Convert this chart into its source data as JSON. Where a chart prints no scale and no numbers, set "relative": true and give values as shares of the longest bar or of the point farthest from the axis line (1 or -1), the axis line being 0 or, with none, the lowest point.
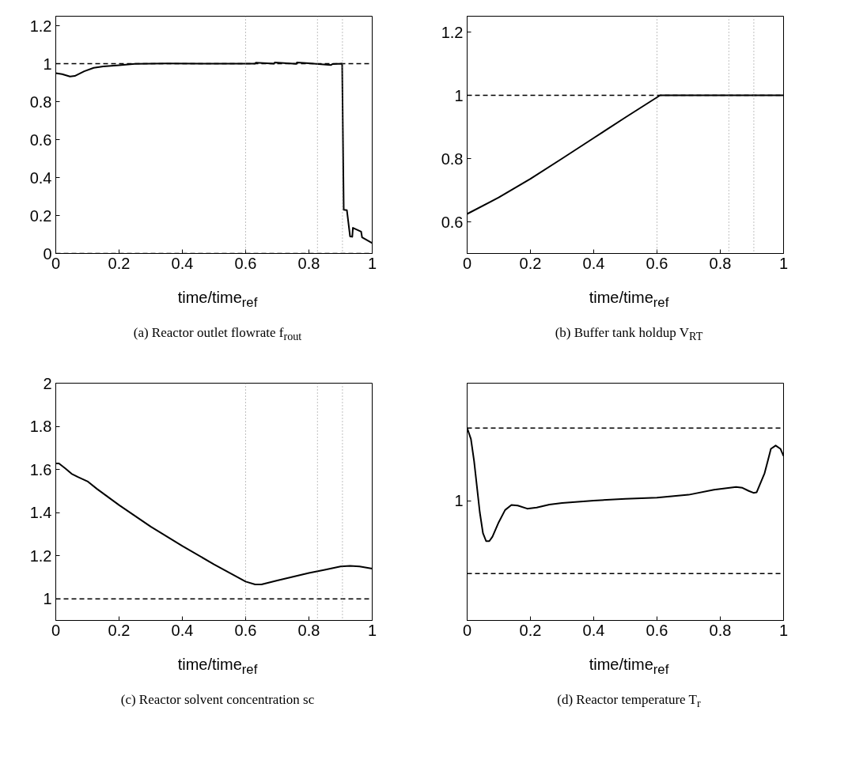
{
  "chart_data": [
    {
      "type": "line",
      "title": "(a) Reactor outlet flowrate f$_{rout}$",
      "xlabel": "time/time$_{ref}$",
      "xlim": [
        0,
        1
      ],
      "xticks": [
        0,
        0.2,
        0.4,
        0.6,
        0.8,
        1
      ],
      "ylim": [
        0,
        1.25
      ],
      "yticks": [
        0,
        0.2,
        0.4,
        0.6,
        0.8,
        1,
        1.2
      ],
      "grid": false,
      "line_style": "solid",
      "series": [
        {
          "color": "#000000",
          "x": [
            0,
            0.02,
            0.045,
            0.06,
            0.09,
            0.12,
            0.15,
            0.2,
            0.25,
            0.35,
            0.5,
            0.63,
            0.632,
            0.69,
            0.692,
            0.76,
            0.762,
            0.8,
            0.87,
            0.875,
            0.905,
            0.91,
            0.92,
            0.93,
            0.937,
            0.939,
            0.965,
            0.968,
            1.0
          ],
          "values": [
            0.95,
            0.945,
            0.932,
            0.935,
            0.96,
            0.978,
            0.985,
            0.992,
            0.999,
            1.001,
            1.0,
            1.0,
            1.005,
            1.0,
            1.006,
            0.999,
            1.006,
            1.002,
            0.993,
            0.998,
            1.0,
            0.23,
            0.228,
            0.09,
            0.088,
            0.135,
            0.115,
            0.085,
            0.055
          ]
        }
      ],
      "ref_lines": [
        {
          "axis": "y",
          "value": 1,
          "color": "#000000",
          "line_style": "dashed"
        },
        {
          "axis": "y",
          "value": 0,
          "color": "#000000",
          "line_style": "dashed"
        },
        {
          "axis": "x",
          "value": 0.6,
          "color": "#808080",
          "line_style": "dotted"
        },
        {
          "axis": "x",
          "value": 0.827,
          "color": "#808080",
          "line_style": "dotted"
        },
        {
          "axis": "x",
          "value": 0.906,
          "color": "#808080",
          "line_style": "dotted"
        }
      ]
    },
    {
      "type": "line",
      "title": "(b) Buffer tank holdup V$_{RT}$",
      "xlabel": "time/time$_{ref}$",
      "xlim": [
        0,
        1
      ],
      "xticks": [
        0,
        0.2,
        0.4,
        0.6,
        0.8,
        1
      ],
      "ylim": [
        0.5,
        1.25
      ],
      "yticks": [
        0.6,
        0.8,
        1,
        1.2
      ],
      "grid": false,
      "line_style": "solid",
      "series": [
        {
          "color": "#000000",
          "x": [
            0,
            0.1,
            0.2,
            0.3,
            0.4,
            0.5,
            0.61,
            1.0
          ],
          "values": [
            0.625,
            0.677,
            0.736,
            0.8,
            0.865,
            0.93,
            1.0,
            1.0
          ]
        }
      ],
      "ref_lines": [
        {
          "axis": "y",
          "value": 1,
          "color": "#000000",
          "line_style": "dashed"
        },
        {
          "axis": "x",
          "value": 0.6,
          "color": "#808080",
          "line_style": "dotted"
        },
        {
          "axis": "x",
          "value": 0.827,
          "color": "#808080",
          "line_style": "dotted"
        },
        {
          "axis": "x",
          "value": 0.906,
          "color": "#808080",
          "line_style": "dotted"
        }
      ]
    },
    {
      "type": "line",
      "title": "(c) Reactor solvent concentration sc",
      "xlabel": "time/time$_{ref}$",
      "xlim": [
        0,
        1
      ],
      "xticks": [
        0,
        0.2,
        0.4,
        0.6,
        0.8,
        1
      ],
      "ylim": [
        0.9,
        2
      ],
      "yticks": [
        1,
        1.2,
        1.4,
        1.6,
        1.8,
        2
      ],
      "grid": false,
      "line_style": "solid",
      "series": [
        {
          "color": "#000000",
          "x": [
            0,
            0.01,
            0.03,
            0.05,
            0.07,
            0.1,
            0.13,
            0.2,
            0.3,
            0.4,
            0.5,
            0.6,
            0.63,
            0.65,
            0.7,
            0.8,
            0.85,
            0.9,
            0.93,
            0.96,
            1.0
          ],
          "values": [
            1.628,
            1.628,
            1.605,
            1.58,
            1.565,
            1.545,
            1.51,
            1.435,
            1.335,
            1.245,
            1.16,
            1.08,
            1.067,
            1.067,
            1.085,
            1.12,
            1.135,
            1.15,
            1.153,
            1.15,
            1.14
          ]
        }
      ],
      "ref_lines": [
        {
          "axis": "y",
          "value": 1,
          "color": "#000000",
          "line_style": "dashed"
        },
        {
          "axis": "x",
          "value": 0.6,
          "color": "#808080",
          "line_style": "dotted"
        },
        {
          "axis": "x",
          "value": 0.827,
          "color": "#808080",
          "line_style": "dotted"
        },
        {
          "axis": "x",
          "value": 0.906,
          "color": "#808080",
          "line_style": "dotted"
        }
      ]
    },
    {
      "type": "line",
      "title": "(d) Reactor temperature T$_{r}$",
      "xlabel": "time/time$_{ref}$",
      "relative": true,
      "xlim": [
        0,
        1
      ],
      "xticks": [
        0,
        0.2,
        0.4,
        0.6,
        0.8,
        1
      ],
      "annotations": [
        "1"
      ],
      "grid": false,
      "line_style": "solid",
      "series": [
        {
          "color": "#000000",
          "x": [
            0,
            0.012,
            0.022,
            0.04,
            0.05,
            0.06,
            0.07,
            0.08,
            0.1,
            0.12,
            0.14,
            0.16,
            0.19,
            0.22,
            0.26,
            0.3,
            0.4,
            0.5,
            0.6,
            0.7,
            0.78,
            0.85,
            0.87,
            0.89,
            0.905,
            0.915,
            0.94,
            0.95,
            0.96,
            0.975,
            0.99,
            1.0
          ],
          "values": [
            1.0,
            0.943,
            0.828,
            0.562,
            0.454,
            0.412,
            0.412,
            0.435,
            0.511,
            0.574,
            0.6,
            0.597,
            0.581,
            0.587,
            0.602,
            0.61,
            0.623,
            0.632,
            0.638,
            0.653,
            0.679,
            0.694,
            0.689,
            0.673,
            0.663,
            0.666,
            0.765,
            0.828,
            0.892,
            0.909,
            0.892,
            0.854
          ]
        }
      ],
      "ref_lines": [
        {
          "axis": "y",
          "value": 1.0,
          "color": "#000000",
          "line_style": "dashed"
        },
        {
          "axis": "y",
          "value": 0.244,
          "color": "#000000",
          "line_style": "dashed"
        }
      ]
    }
  ]
}
